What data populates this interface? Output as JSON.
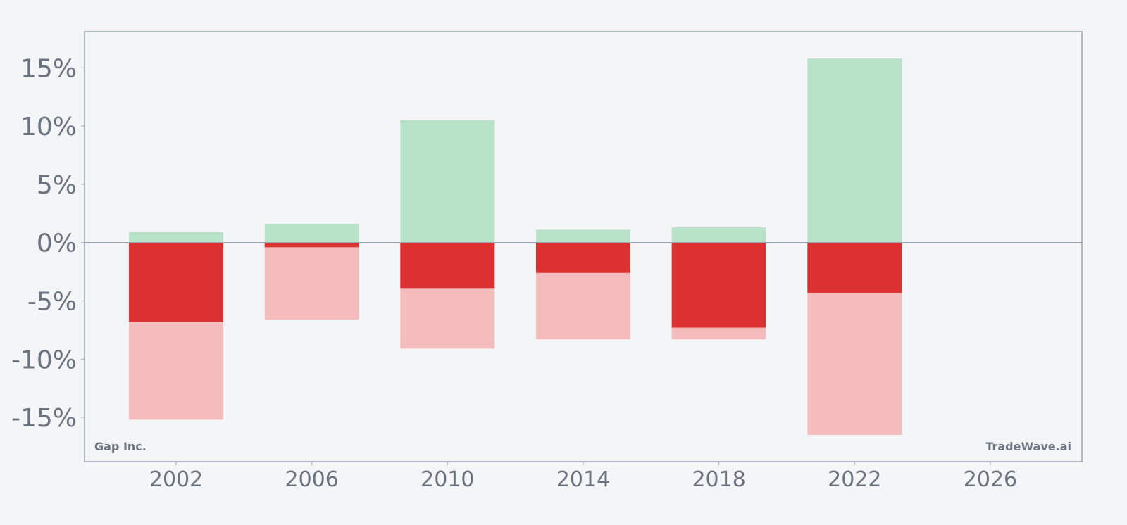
{
  "chart_data": {
    "type": "bar",
    "x": [
      2002,
      2006,
      2010,
      2014,
      2018,
      2022
    ],
    "series": [
      {
        "values": [
          0.9,
          1.6,
          10.5,
          1.1,
          1.3,
          15.8
        ],
        "color": "#b9e3c9"
      },
      {
        "values": [
          -15.2,
          -6.6,
          -9.1,
          -8.3,
          -8.3,
          -16.5
        ],
        "color": "#f4bcbc"
      },
      {
        "values": [
          -6.8,
          -0.4,
          -3.9,
          -2.6,
          -7.3,
          -4.3
        ],
        "color": "#dc3131"
      }
    ],
    "xticks": [
      "2002",
      "2006",
      "2010",
      "2014",
      "2018",
      "2022",
      "2026"
    ],
    "xlim": [
      1999.3,
      2028.7
    ],
    "yticks": [
      "15%",
      "10%",
      "5%",
      "0%",
      "-5%",
      "-10%",
      "-15%"
    ],
    "ylim": [
      -18.8,
      18.1
    ],
    "grid": false,
    "legend": "none",
    "colors": {
      "background": "#f4f5f7",
      "frame": "#9ca3af",
      "zero_line": "#9ca3af",
      "text": "#6b7280"
    }
  },
  "watermarks": {
    "left": "Gap Inc.",
    "right": "TradeWave.ai"
  }
}
